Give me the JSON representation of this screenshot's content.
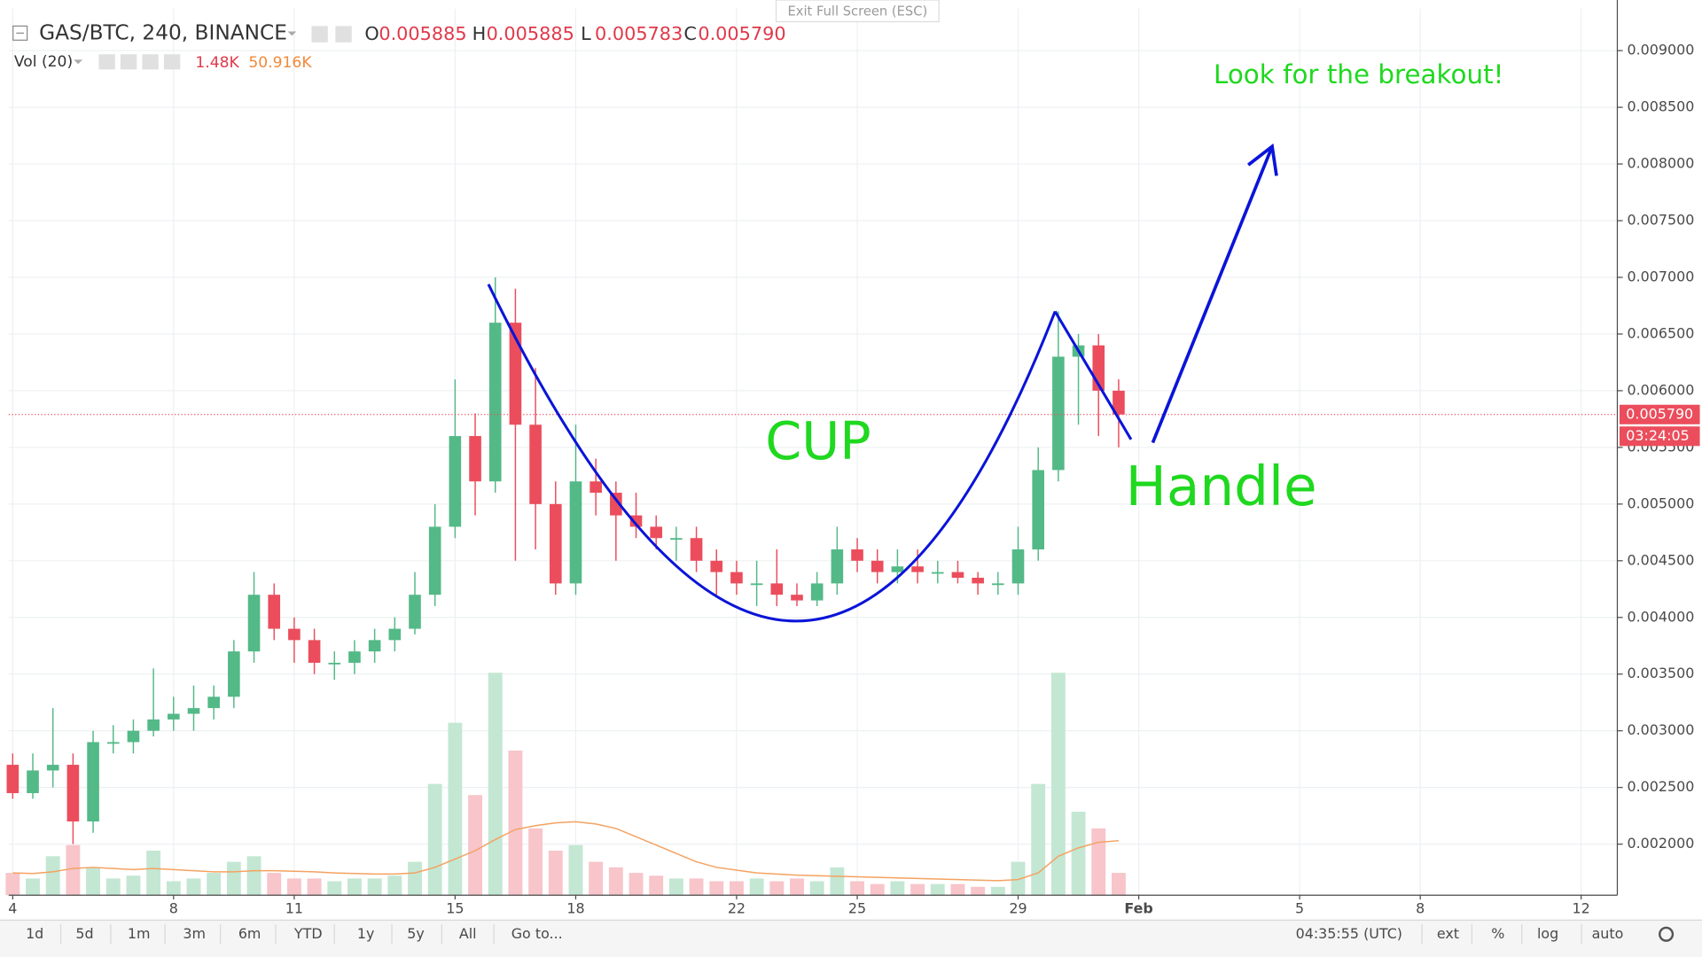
{
  "exit_fullscreen": "Exit Full Screen (ESC)",
  "header": {
    "symbol": "GAS/BTC, 240, BINANCE",
    "ohlc": [
      {
        "key": "O",
        "value": "0.005885"
      },
      {
        "key": "H",
        "value": "0.005885"
      },
      {
        "key": "L",
        "value": "0.005783"
      },
      {
        "key": "C",
        "value": "0.005790"
      }
    ],
    "volume_name": "Vol (20)",
    "volume_value": "1.48K",
    "volume_ma_value": "50.916K"
  },
  "chart_data": {
    "type": "candlestick",
    "title": "GAS/BTC, 240, BINANCE",
    "x": [
      4.0,
      4.5,
      5.0,
      5.5,
      6.0,
      6.5,
      7.0,
      7.5,
      8.0,
      8.5,
      9.0,
      9.5,
      10.0,
      10.5,
      11.0,
      11.5,
      12.0,
      12.5,
      13.0,
      13.5,
      14.0,
      14.5,
      15.0,
      15.5,
      16.0,
      16.5,
      17.0,
      17.5,
      18.0,
      18.5,
      19.0,
      19.5,
      20.0,
      20.5,
      21.0,
      21.5,
      22.0,
      22.5,
      23.0,
      23.5,
      24.0,
      24.5,
      25.0,
      25.5,
      26.0,
      26.5,
      27.0,
      27.5,
      28.0,
      28.5,
      29.0,
      29.5,
      30.0,
      30.5,
      31.0,
      31.5
    ],
    "candles": [
      [
        0.0027,
        0.0028,
        0.0024,
        0.00245
      ],
      [
        0.00245,
        0.0028,
        0.0024,
        0.00265
      ],
      [
        0.00265,
        0.0032,
        0.0025,
        0.0027
      ],
      [
        0.0027,
        0.0028,
        0.002,
        0.0022
      ],
      [
        0.0022,
        0.003,
        0.0021,
        0.0029
      ],
      [
        0.0029,
        0.00305,
        0.0028,
        0.0029
      ],
      [
        0.0029,
        0.0031,
        0.0028,
        0.003
      ],
      [
        0.003,
        0.00355,
        0.00295,
        0.0031
      ],
      [
        0.0031,
        0.0033,
        0.003,
        0.00315
      ],
      [
        0.00315,
        0.0034,
        0.003,
        0.0032
      ],
      [
        0.0032,
        0.0034,
        0.0031,
        0.0033
      ],
      [
        0.0033,
        0.0038,
        0.0032,
        0.0037
      ],
      [
        0.0037,
        0.0044,
        0.0036,
        0.0042
      ],
      [
        0.0042,
        0.0043,
        0.0038,
        0.0039
      ],
      [
        0.0039,
        0.004,
        0.0036,
        0.0038
      ],
      [
        0.0038,
        0.0039,
        0.0035,
        0.0036
      ],
      [
        0.0036,
        0.0037,
        0.00345,
        0.0036
      ],
      [
        0.0036,
        0.0038,
        0.0035,
        0.0037
      ],
      [
        0.0037,
        0.0039,
        0.0036,
        0.0038
      ],
      [
        0.0038,
        0.004,
        0.0037,
        0.0039
      ],
      [
        0.0039,
        0.0044,
        0.00385,
        0.0042
      ],
      [
        0.0042,
        0.005,
        0.0041,
        0.0048
      ],
      [
        0.0048,
        0.0061,
        0.0047,
        0.0056
      ],
      [
        0.0056,
        0.0058,
        0.0049,
        0.0052
      ],
      [
        0.0052,
        0.007,
        0.0051,
        0.0066
      ],
      [
        0.0066,
        0.0069,
        0.0045,
        0.0057
      ],
      [
        0.0057,
        0.0062,
        0.0046,
        0.005
      ],
      [
        0.005,
        0.0052,
        0.0042,
        0.0043
      ],
      [
        0.0043,
        0.0057,
        0.0042,
        0.0052
      ],
      [
        0.0052,
        0.0054,
        0.0049,
        0.0051
      ],
      [
        0.0051,
        0.0052,
        0.0045,
        0.0049
      ],
      [
        0.0049,
        0.0051,
        0.0047,
        0.0048
      ],
      [
        0.0048,
        0.0049,
        0.0046,
        0.0047
      ],
      [
        0.0047,
        0.0048,
        0.0045,
        0.0047
      ],
      [
        0.0047,
        0.0048,
        0.0044,
        0.0045
      ],
      [
        0.0045,
        0.0046,
        0.0042,
        0.0044
      ],
      [
        0.0044,
        0.0045,
        0.0042,
        0.0043
      ],
      [
        0.0043,
        0.0045,
        0.0041,
        0.0043
      ],
      [
        0.0043,
        0.0046,
        0.0041,
        0.0042
      ],
      [
        0.0042,
        0.0043,
        0.0041,
        0.00415
      ],
      [
        0.00415,
        0.0044,
        0.0041,
        0.0043
      ],
      [
        0.0043,
        0.0048,
        0.0042,
        0.0046
      ],
      [
        0.0046,
        0.0047,
        0.0044,
        0.0045
      ],
      [
        0.0045,
        0.0046,
        0.0043,
        0.0044
      ],
      [
        0.0044,
        0.0046,
        0.0043,
        0.00445
      ],
      [
        0.00445,
        0.0046,
        0.0043,
        0.0044
      ],
      [
        0.0044,
        0.0045,
        0.0043,
        0.0044
      ],
      [
        0.0044,
        0.0045,
        0.0043,
        0.00435
      ],
      [
        0.00435,
        0.0044,
        0.0042,
        0.0043
      ],
      [
        0.0043,
        0.0044,
        0.0042,
        0.0043
      ],
      [
        0.0043,
        0.0048,
        0.0042,
        0.0046
      ],
      [
        0.0046,
        0.0055,
        0.0045,
        0.0053
      ],
      [
        0.0053,
        0.0067,
        0.0052,
        0.0063
      ],
      [
        0.0063,
        0.0065,
        0.0057,
        0.0064
      ],
      [
        0.0064,
        0.0065,
        0.0056,
        0.006
      ],
      [
        0.006,
        0.0061,
        0.0055,
        0.00579
      ]
    ],
    "volume": [
      40,
      30,
      70,
      90,
      50,
      30,
      35,
      80,
      25,
      30,
      40,
      60,
      70,
      40,
      30,
      30,
      25,
      30,
      30,
      35,
      60,
      200,
      310,
      180,
      400,
      260,
      120,
      80,
      90,
      60,
      50,
      40,
      35,
      30,
      30,
      25,
      25,
      30,
      25,
      30,
      25,
      50,
      25,
      20,
      25,
      20,
      20,
      20,
      15,
      15,
      60,
      200,
      400,
      150,
      120,
      40
    ],
    "volume_ma": [
      40,
      39,
      42,
      48,
      50,
      48,
      46,
      48,
      46,
      44,
      42,
      42,
      44,
      44,
      43,
      42,
      40,
      39,
      38,
      38,
      40,
      50,
      65,
      80,
      100,
      118,
      125,
      130,
      132,
      128,
      120,
      105,
      90,
      75,
      60,
      50,
      45,
      40,
      38,
      36,
      35,
      34,
      33,
      32,
      31,
      30,
      29,
      28,
      27,
      26,
      28,
      40,
      70,
      85,
      95,
      98
    ],
    "volume_lim": [
      0,
      400
    ],
    "up_color": "#53b987",
    "down_color": "#eb4d5c",
    "volume_up_color": "#c3e7d3",
    "volume_down_color": "#f7c5ca",
    "volume_ma_color": "#f4a261",
    "xlim": [
      3.9,
      43.9
    ],
    "xticks": [
      4,
      8,
      11,
      15,
      18,
      22,
      25,
      29,
      {
        "value": 32,
        "label": "Feb"
      },
      {
        "value": 36,
        "label": "5"
      },
      {
        "value": 39,
        "label": "8"
      },
      {
        "value": 43,
        "label": "12"
      }
    ],
    "ylim": [
      0.00155,
      0.00937
    ],
    "yticks": [
      {
        "value": 0.002,
        "label": "0.002000"
      },
      {
        "value": 0.0025,
        "label": "0.002500"
      },
      {
        "value": 0.003,
        "label": "0.003000"
      },
      {
        "value": 0.0035,
        "label": "0.003500"
      },
      {
        "value": 0.004,
        "label": "0.004000"
      },
      {
        "value": 0.0045,
        "label": "0.004500"
      },
      {
        "value": 0.005,
        "label": "0.005000"
      },
      {
        "value": 0.0055,
        "label": "0.005500"
      },
      {
        "value": 0.006,
        "label": "0.006000"
      },
      {
        "value": 0.0065,
        "label": "0.006500"
      },
      {
        "value": 0.007,
        "label": "0.007000"
      },
      {
        "value": 0.0075,
        "label": "0.007500"
      },
      {
        "value": 0.008,
        "label": "0.008000"
      },
      {
        "value": 0.0085,
        "label": "0.008500"
      },
      {
        "value": 0.009,
        "label": "0.009000"
      }
    ],
    "grid": true,
    "last_price": {
      "value": 0.00579,
      "label": "0.005790"
    },
    "countdown": "03:24:05",
    "annotations": {
      "breakout": "Look for the breakout!",
      "cup": "CUP",
      "handle": "Handle"
    }
  },
  "toolbar": {
    "ranges": [
      "1d",
      "5d",
      "1m",
      "3m",
      "6m",
      "YTD",
      "1y",
      "5y",
      "All"
    ],
    "goto": "Go to...",
    "clock": "04:35:55 (UTC)",
    "options": [
      "ext",
      "%",
      "log",
      "auto"
    ]
  }
}
